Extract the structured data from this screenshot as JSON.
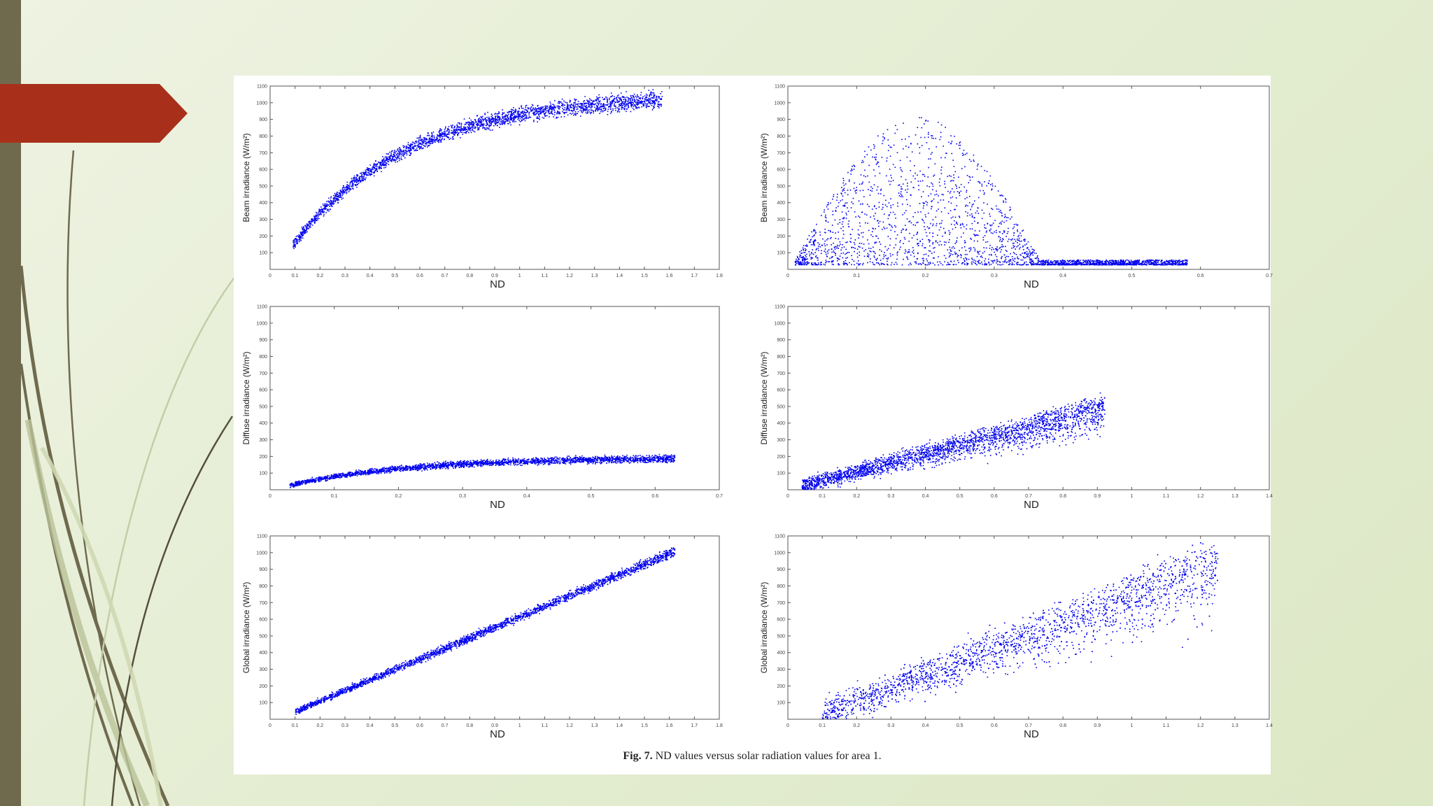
{
  "slide": {
    "accent_color": "#a8301a",
    "sidebar_color": "#6f6a4e",
    "decor": "curved-lines-decoration"
  },
  "figure": {
    "caption_label": "Fig. 7.",
    "caption_text": "ND values versus solar radiation values for area 1."
  },
  "chart_data": [
    {
      "type": "scatter",
      "xlabel": "ND",
      "ylabel": "Beam irradiance (W/m²)",
      "xlim": [
        0,
        1.8
      ],
      "ylim": [
        0,
        1100
      ],
      "xticks": [
        "0",
        "0.1",
        "0.2",
        "0.3",
        "0.4",
        "0.5",
        "0.6",
        "0.7",
        "0.8",
        "0.9",
        "1",
        "1.1",
        "1.2",
        "1.3",
        "1.4",
        "1.5",
        "1.6",
        "1.7",
        "1.8"
      ],
      "yticks": [
        "100",
        "200",
        "300",
        "400",
        "500",
        "600",
        "700",
        "800",
        "900",
        "1000",
        "1100"
      ],
      "color": "#0000ee",
      "trend": {
        "shape": "saturating",
        "x_range": [
          0.09,
          1.57
        ],
        "y_start": 150,
        "y_end": 1020,
        "spread": 160
      }
    },
    {
      "type": "scatter",
      "xlabel": "ND",
      "ylabel": "Beam irradiance (W/m²)",
      "xlim": [
        0,
        0.7
      ],
      "ylim": [
        0,
        1100
      ],
      "xticks": [
        "0",
        "0.1",
        "0.2",
        "0.3",
        "0.4",
        "0.5",
        "0.6",
        "0.7"
      ],
      "yticks": [
        "100",
        "200",
        "300",
        "400",
        "500",
        "600",
        "700",
        "800",
        "900",
        "1000",
        "1100"
      ],
      "color": "#0000ee",
      "trend": {
        "shape": "diffuse-cloud",
        "x_range": [
          0.01,
          0.58
        ],
        "y_start": 30,
        "y_end": 900,
        "spread": 900
      }
    },
    {
      "type": "scatter",
      "xlabel": "ND",
      "ylabel": "Diffuse irradiance (W/m²)",
      "xlim": [
        0,
        0.7
      ],
      "ylim": [
        0,
        1100
      ],
      "xticks": [
        "0",
        "0.1",
        "0.2",
        "0.3",
        "0.4",
        "0.5",
        "0.6",
        "0.7"
      ],
      "yticks": [
        "100",
        "200",
        "300",
        "400",
        "500",
        "600",
        "700",
        "800",
        "900",
        "1000",
        "1100"
      ],
      "color": "#0000ee",
      "trend": {
        "shape": "saturating",
        "x_range": [
          0.03,
          0.63
        ],
        "y_start": 30,
        "y_end": 190,
        "spread": 70
      }
    },
    {
      "type": "scatter",
      "xlabel": "ND",
      "ylabel": "Diffuse irradiance (W/m²)",
      "xlim": [
        0,
        1.4
      ],
      "ylim": [
        0,
        1100
      ],
      "xticks": [
        "0",
        "0.1",
        "0.2",
        "0.3",
        "0.4",
        "0.5",
        "0.6",
        "0.7",
        "0.8",
        "0.9",
        "1",
        "1.1",
        "1.2",
        "1.3",
        "1.4"
      ],
      "yticks": [
        "100",
        "200",
        "300",
        "400",
        "500",
        "600",
        "700",
        "800",
        "900",
        "1000",
        "1100"
      ],
      "color": "#0000ee",
      "trend": {
        "shape": "linear-fan",
        "x_range": [
          0.04,
          0.92
        ],
        "y_start": 30,
        "y_end": 560,
        "spread": 260
      }
    },
    {
      "type": "scatter",
      "xlabel": "ND",
      "ylabel": "Global irradiance (W/m²)",
      "xlim": [
        0,
        1.8
      ],
      "ylim": [
        0,
        1100
      ],
      "xticks": [
        "0",
        "0.1",
        "0.2",
        "0.3",
        "0.4",
        "0.5",
        "0.6",
        "0.7",
        "0.8",
        "0.9",
        "1",
        "1.1",
        "1.2",
        "1.3",
        "1.4",
        "1.5",
        "1.6",
        "1.7",
        "1.8"
      ],
      "yticks": [
        "100",
        "200",
        "300",
        "400",
        "500",
        "600",
        "700",
        "800",
        "900",
        "1000",
        "1100"
      ],
      "color": "#0000ee",
      "trend": {
        "shape": "linear",
        "x_range": [
          0.1,
          1.62
        ],
        "y_start": 50,
        "y_end": 1010,
        "spread": 90
      }
    },
    {
      "type": "scatter",
      "xlabel": "ND",
      "ylabel": "Global irradiance (W/m²)",
      "xlim": [
        0,
        1.4
      ],
      "ylim": [
        0,
        1100
      ],
      "xticks": [
        "0",
        "0.1",
        "0.2",
        "0.3",
        "0.4",
        "0.5",
        "0.6",
        "0.7",
        "0.8",
        "0.9",
        "1",
        "1.1",
        "1.2",
        "1.3",
        "1.4"
      ],
      "yticks": [
        "100",
        "200",
        "300",
        "400",
        "500",
        "600",
        "700",
        "800",
        "900",
        "1000",
        "1100"
      ],
      "color": "#0000ee",
      "trend": {
        "shape": "linear-fan",
        "x_range": [
          0.1,
          1.25
        ],
        "y_start": 40,
        "y_end": 1060,
        "spread": 520
      }
    }
  ]
}
